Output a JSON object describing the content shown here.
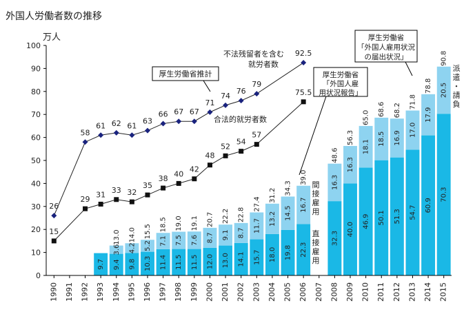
{
  "chart_data": {
    "type": "bar",
    "title": "外国人労働者数の推移",
    "ylabel": "万人",
    "ylim": [
      0,
      100
    ],
    "yticks": [
      0,
      10,
      20,
      30,
      40,
      50,
      60,
      70,
      80,
      90,
      100
    ],
    "grid": false,
    "categories": [
      "1990",
      "1991",
      "1992",
      "1993",
      "1994",
      "1995",
      "1996",
      "1997",
      "1998",
      "1999",
      "2000",
      "2001",
      "2002",
      "2003",
      "2004",
      "2005",
      "2006",
      "2007",
      "2008",
      "2009",
      "2010",
      "2011",
      "2012",
      "2013",
      "2014",
      "2015"
    ],
    "bar_colors": {
      "lower": "#1ab8e6",
      "upper": "#8ed3f0"
    },
    "line_colors": {
      "illegal": "#1a237e",
      "legal": "#111111"
    },
    "series": [
      {
        "type": "bar",
        "values": [
          null,
          null,
          null,
          9.7,
          9.4,
          9.8,
          10.3,
          11.4,
          11.5,
          11.5,
          12.0,
          13.0,
          14.1,
          15.7,
          18.0,
          19.8,
          22.3,
          null,
          32.3,
          40.0,
          46.9,
          50.1,
          51.3,
          54.7,
          60.9,
          70.3
        ]
      },
      {
        "type": "bar",
        "values": [
          null,
          null,
          null,
          null,
          3.6,
          4.2,
          5.2,
          7.1,
          7.5,
          7.6,
          8.7,
          9.1,
          8.7,
          11.7,
          13.2,
          14.5,
          16.7,
          null,
          16.3,
          16.3,
          18.1,
          18.5,
          16.9,
          17.0,
          17.9,
          20.5
        ]
      },
      {
        "type": "bar-total",
        "values": [
          null,
          null,
          null,
          null,
          13.0,
          14.0,
          15.5,
          18.5,
          19.0,
          19.1,
          20.7,
          22.2,
          22.8,
          27.4,
          31.2,
          34.3,
          39.0,
          null,
          48.6,
          56.3,
          65.0,
          68.6,
          68.2,
          71.8,
          78.8,
          90.8
        ]
      },
      {
        "type": "line",
        "name": "不法残留者を含む就労者数",
        "values": [
          26,
          null,
          58,
          61,
          62,
          61,
          63,
          66,
          67,
          67,
          71,
          74,
          76,
          79,
          null,
          null,
          92.5,
          null,
          null,
          null,
          null,
          null,
          null,
          null,
          null,
          null
        ]
      },
      {
        "type": "line",
        "name": "合法的就労者数",
        "values": [
          15,
          null,
          29,
          31,
          33,
          32,
          35,
          38,
          40,
          42,
          48,
          52,
          54,
          57,
          null,
          null,
          75.5,
          null,
          null,
          null,
          null,
          null,
          null,
          null,
          null,
          null
        ]
      }
    ],
    "annotations": {
      "estimate": "厚生労働省推計",
      "report_2006": "厚生労働省「外国人雇用状況報告」",
      "notification": "厚生労働省「外国人雇用状況の届出状況」",
      "indirect": "間接雇用",
      "direct": "直接雇用",
      "dispatch": "派遣・請負"
    }
  }
}
